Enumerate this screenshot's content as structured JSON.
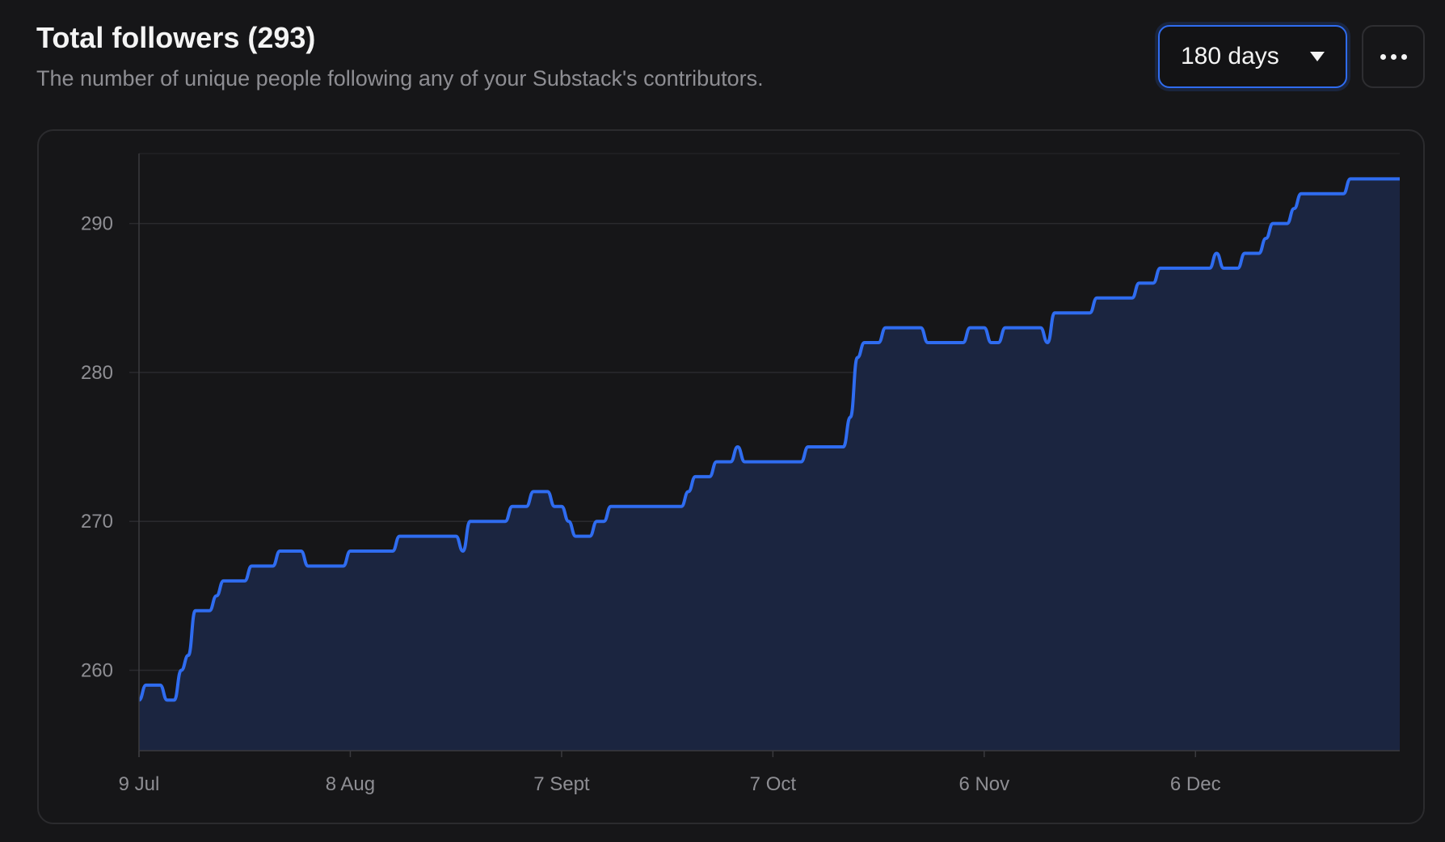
{
  "header": {
    "title": "Total followers (293)",
    "subtitle": "The number of unique people following any of your Substack's contributors."
  },
  "controls": {
    "range_selected": "180 days",
    "range_icon": "caret-down-icon",
    "more_icon": "ellipsis-icon"
  },
  "colors": {
    "line": "#2f6cf0",
    "fill": "#1b2540",
    "background": "#161618"
  },
  "chart_data": {
    "type": "area",
    "title": "Total followers (293)",
    "xlabel": "",
    "ylabel": "",
    "ylim": [
      254.6,
      294.7
    ],
    "grid": true,
    "y_ticks": [
      260,
      270,
      280,
      290
    ],
    "y_tick_labels": [
      "260",
      "270",
      "280",
      "290"
    ],
    "x_ticks": [
      "9 Jul",
      "8 Aug",
      "7 Sept",
      "7 Oct",
      "6 Nov",
      "6 Dec"
    ],
    "x": [
      "9 Jul",
      "10 Jul",
      "11 Jul",
      "12 Jul",
      "13 Jul",
      "14 Jul",
      "15 Jul",
      "16 Jul",
      "17 Jul",
      "18 Jul",
      "19 Jul",
      "20 Jul",
      "21 Jul",
      "22 Jul",
      "23 Jul",
      "24 Jul",
      "25 Jul",
      "26 Jul",
      "27 Jul",
      "28 Jul",
      "29 Jul",
      "30 Jul",
      "31 Jul",
      "1 Aug",
      "2 Aug",
      "3 Aug",
      "4 Aug",
      "5 Aug",
      "6 Aug",
      "7 Aug",
      "8 Aug",
      "9 Aug",
      "10 Aug",
      "11 Aug",
      "12 Aug",
      "13 Aug",
      "14 Aug",
      "15 Aug",
      "16 Aug",
      "17 Aug",
      "18 Aug",
      "19 Aug",
      "20 Aug",
      "21 Aug",
      "22 Aug",
      "23 Aug",
      "24 Aug",
      "25 Aug",
      "26 Aug",
      "27 Aug",
      "28 Aug",
      "29 Aug",
      "30 Aug",
      "31 Aug",
      "1 Sept",
      "2 Sept",
      "3 Sept",
      "4 Sept",
      "5 Sept",
      "6 Sept",
      "7 Sept",
      "8 Sept",
      "9 Sept",
      "10 Sept",
      "11 Sept",
      "12 Sept",
      "13 Sept",
      "14 Sept",
      "15 Sept",
      "16 Sept",
      "17 Sept",
      "18 Sept",
      "19 Sept",
      "20 Sept",
      "21 Sept",
      "22 Sept",
      "23 Sept",
      "24 Sept",
      "25 Sept",
      "26 Sept",
      "27 Sept",
      "28 Sept",
      "29 Sept",
      "30 Sept",
      "1 Oct",
      "2 Oct",
      "3 Oct",
      "4 Oct",
      "5 Oct",
      "6 Oct",
      "7 Oct",
      "8 Oct",
      "9 Oct",
      "10 Oct",
      "11 Oct",
      "12 Oct",
      "13 Oct",
      "14 Oct",
      "15 Oct",
      "16 Oct",
      "17 Oct",
      "18 Oct",
      "19 Oct",
      "20 Oct",
      "21 Oct",
      "22 Oct",
      "23 Oct",
      "24 Oct",
      "25 Oct",
      "26 Oct",
      "27 Oct",
      "28 Oct",
      "29 Oct",
      "30 Oct",
      "31 Oct",
      "1 Nov",
      "2 Nov",
      "3 Nov",
      "4 Nov",
      "5 Nov",
      "6 Nov",
      "7 Nov",
      "8 Nov",
      "9 Nov",
      "10 Nov",
      "11 Nov",
      "12 Nov",
      "13 Nov",
      "14 Nov",
      "15 Nov",
      "16 Nov",
      "17 Nov",
      "18 Nov",
      "19 Nov",
      "20 Nov",
      "21 Nov",
      "22 Nov",
      "23 Nov",
      "24 Nov",
      "25 Nov",
      "26 Nov",
      "27 Nov",
      "28 Nov",
      "29 Nov",
      "30 Nov",
      "1 Dec",
      "2 Dec",
      "3 Dec",
      "4 Dec",
      "5 Dec",
      "6 Dec",
      "7 Dec",
      "8 Dec",
      "9 Dec",
      "10 Dec",
      "11 Dec",
      "12 Dec",
      "13 Dec",
      "14 Dec",
      "15 Dec",
      "16 Dec",
      "17 Dec",
      "18 Dec",
      "19 Dec",
      "20 Dec",
      "21 Dec",
      "22 Dec",
      "23 Dec",
      "24 Dec",
      "25 Dec",
      "26 Dec",
      "27 Dec",
      "28 Dec",
      "29 Dec",
      "30 Dec",
      "31 Dec",
      "1 Jan",
      "2 Jan",
      "3 Jan",
      "4 Jan"
    ],
    "values": [
      258,
      259,
      259,
      259,
      258,
      258,
      260,
      261,
      264,
      264,
      264,
      265,
      266,
      266,
      266,
      266,
      267,
      267,
      267,
      267,
      268,
      268,
      268,
      268,
      267,
      267,
      267,
      267,
      267,
      267,
      268,
      268,
      268,
      268,
      268,
      268,
      268,
      269,
      269,
      269,
      269,
      269,
      269,
      269,
      269,
      269,
      268,
      270,
      270,
      270,
      270,
      270,
      270,
      271,
      271,
      271,
      272,
      272,
      272,
      271,
      271,
      270,
      269,
      269,
      269,
      270,
      270,
      271,
      271,
      271,
      271,
      271,
      271,
      271,
      271,
      271,
      271,
      271,
      272,
      273,
      273,
      273,
      274,
      274,
      274,
      275,
      274,
      274,
      274,
      274,
      274,
      274,
      274,
      274,
      274,
      275,
      275,
      275,
      275,
      275,
      275,
      277,
      281,
      282,
      282,
      282,
      283,
      283,
      283,
      283,
      283,
      283,
      282,
      282,
      282,
      282,
      282,
      282,
      283,
      283,
      283,
      282,
      282,
      283,
      283,
      283,
      283,
      283,
      283,
      282,
      284,
      284,
      284,
      284,
      284,
      284,
      285,
      285,
      285,
      285,
      285,
      285,
      286,
      286,
      286,
      287,
      287,
      287,
      287,
      287,
      287,
      287,
      287,
      288,
      287,
      287,
      287,
      288,
      288,
      288,
      289,
      290,
      290,
      290,
      291,
      292,
      292,
      292,
      292,
      292,
      292,
      292,
      293,
      293,
      293,
      293,
      293,
      293,
      293,
      293
    ]
  }
}
